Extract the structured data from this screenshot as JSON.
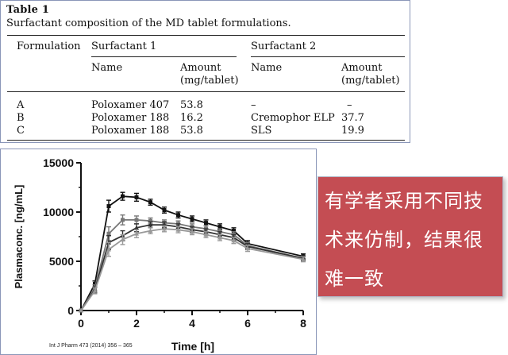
{
  "table": {
    "label": "Table   1",
    "caption": "Surfactant composition of the MD tablet formulations.",
    "col_formulation": "Formulation",
    "group1": "Surfactant 1",
    "group2": "Surfactant 2",
    "sub_name": "Name",
    "sub_amount_1": "Amount",
    "sub_amount_2": "(mg/tablet)",
    "rows": [
      {
        "formulation": "A",
        "s1_name": "Poloxamer 407",
        "s1_amount": "53.8",
        "s2_name": "–",
        "s2_amount": "–"
      },
      {
        "formulation": "B",
        "s1_name": "Poloxamer 188",
        "s1_amount": "16.2",
        "s2_name": "Cremophor ELP",
        "s2_amount": "37.7"
      },
      {
        "formulation": "C",
        "s1_name": "Poloxamer 188",
        "s1_amount": "53.8",
        "s2_name": "SLS",
        "s2_amount": "19.9"
      }
    ]
  },
  "chart_data": {
    "type": "line",
    "title": "",
    "xlabel": "Time [h]",
    "ylabel": "Plasmaconc. [ng/mL]",
    "xlim": [
      0,
      8
    ],
    "ylim": [
      0,
      15000
    ],
    "xticks": [
      0,
      2,
      4,
      6,
      8
    ],
    "yticks": [
      0,
      5000,
      10000,
      15000
    ],
    "ytick_labels": [
      "0",
      "5000",
      "10000",
      "15000"
    ],
    "grid": false,
    "legend": "none",
    "x": [
      0,
      0.5,
      1,
      1.5,
      2,
      2.5,
      3,
      3.5,
      4,
      4.5,
      5,
      5.5,
      6,
      8
    ],
    "series": [
      {
        "color": "#111111",
        "marker": "square",
        "values": [
          0,
          2700,
          10600,
          11600,
          11500,
          11000,
          10200,
          9700,
          9300,
          8900,
          8500,
          8100,
          6800,
          5500
        ],
        "errors": [
          0,
          300,
          600,
          400,
          400,
          300,
          300,
          300,
          300,
          300,
          300,
          300,
          300,
          250
        ]
      },
      {
        "color": "#777777",
        "marker": "square",
        "values": [
          0,
          2300,
          7800,
          9200,
          9200,
          9100,
          8900,
          8800,
          8500,
          8300,
          8000,
          7700,
          6600,
          5300
        ],
        "errors": [
          0,
          300,
          700,
          500,
          400,
          300,
          300,
          300,
          300,
          300,
          300,
          300,
          300,
          250
        ]
      },
      {
        "color": "#333333",
        "marker": "triangle",
        "values": [
          0,
          2100,
          6900,
          7600,
          8400,
          8700,
          8700,
          8500,
          8200,
          8000,
          7700,
          7400,
          6500,
          5300
        ],
        "errors": [
          0,
          300,
          700,
          500,
          400,
          300,
          300,
          300,
          300,
          300,
          300,
          300,
          300,
          250
        ]
      },
      {
        "color": "#999999",
        "marker": "triangle",
        "values": [
          0,
          2000,
          6200,
          7200,
          7800,
          8100,
          8300,
          8200,
          8000,
          7700,
          7400,
          7100,
          6300,
          5200
        ],
        "errors": [
          0,
          300,
          700,
          500,
          400,
          300,
          300,
          300,
          300,
          300,
          300,
          300,
          300,
          250
        ]
      }
    ]
  },
  "citation": "Int J Pharm 473  (2014)  356 – 365",
  "callout": {
    "text": "有学者采用不同技术来仿制，结果很难一致"
  }
}
